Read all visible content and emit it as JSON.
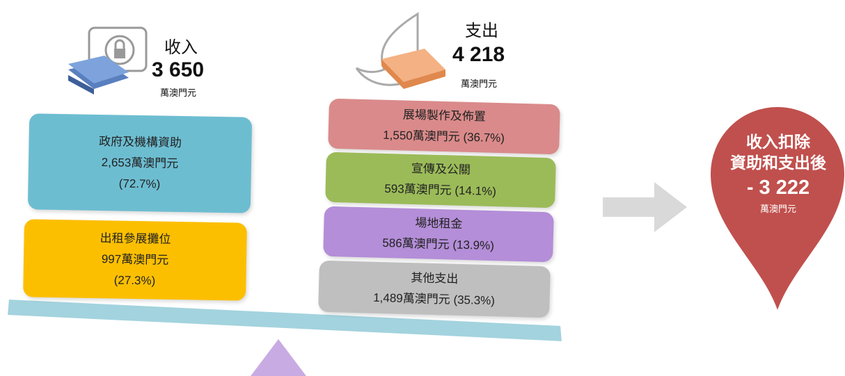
{
  "income": {
    "label": "收入",
    "amount": "3 650",
    "unit": "萬澳門元",
    "items": [
      {
        "name": "政府及機構資助",
        "amount": "2,653萬澳門元",
        "share": "(72.7%)"
      },
      {
        "name": "出租參展攤位",
        "amount": "997萬澳門元",
        "share": "(27.3%)"
      }
    ]
  },
  "expense": {
    "label": "支出",
    "amount": "4 218",
    "unit": "萬澳門元",
    "items": [
      {
        "name": "展場製作及佈置",
        "detail": "1,550萬澳門元 (36.7%)"
      },
      {
        "name": "宣傳及公關",
        "detail": "593萬澳門元 (14.1%)"
      },
      {
        "name": "場地租金",
        "detail": "586萬澳門元 (13.9%)"
      },
      {
        "name": "其他支出",
        "detail": "1,489萬澳門元 (35.3%)"
      }
    ]
  },
  "result": {
    "line1": "收入扣除",
    "line2": "資助和支出後",
    "amount": "- 3 222",
    "unit": "萬澳門元"
  }
}
